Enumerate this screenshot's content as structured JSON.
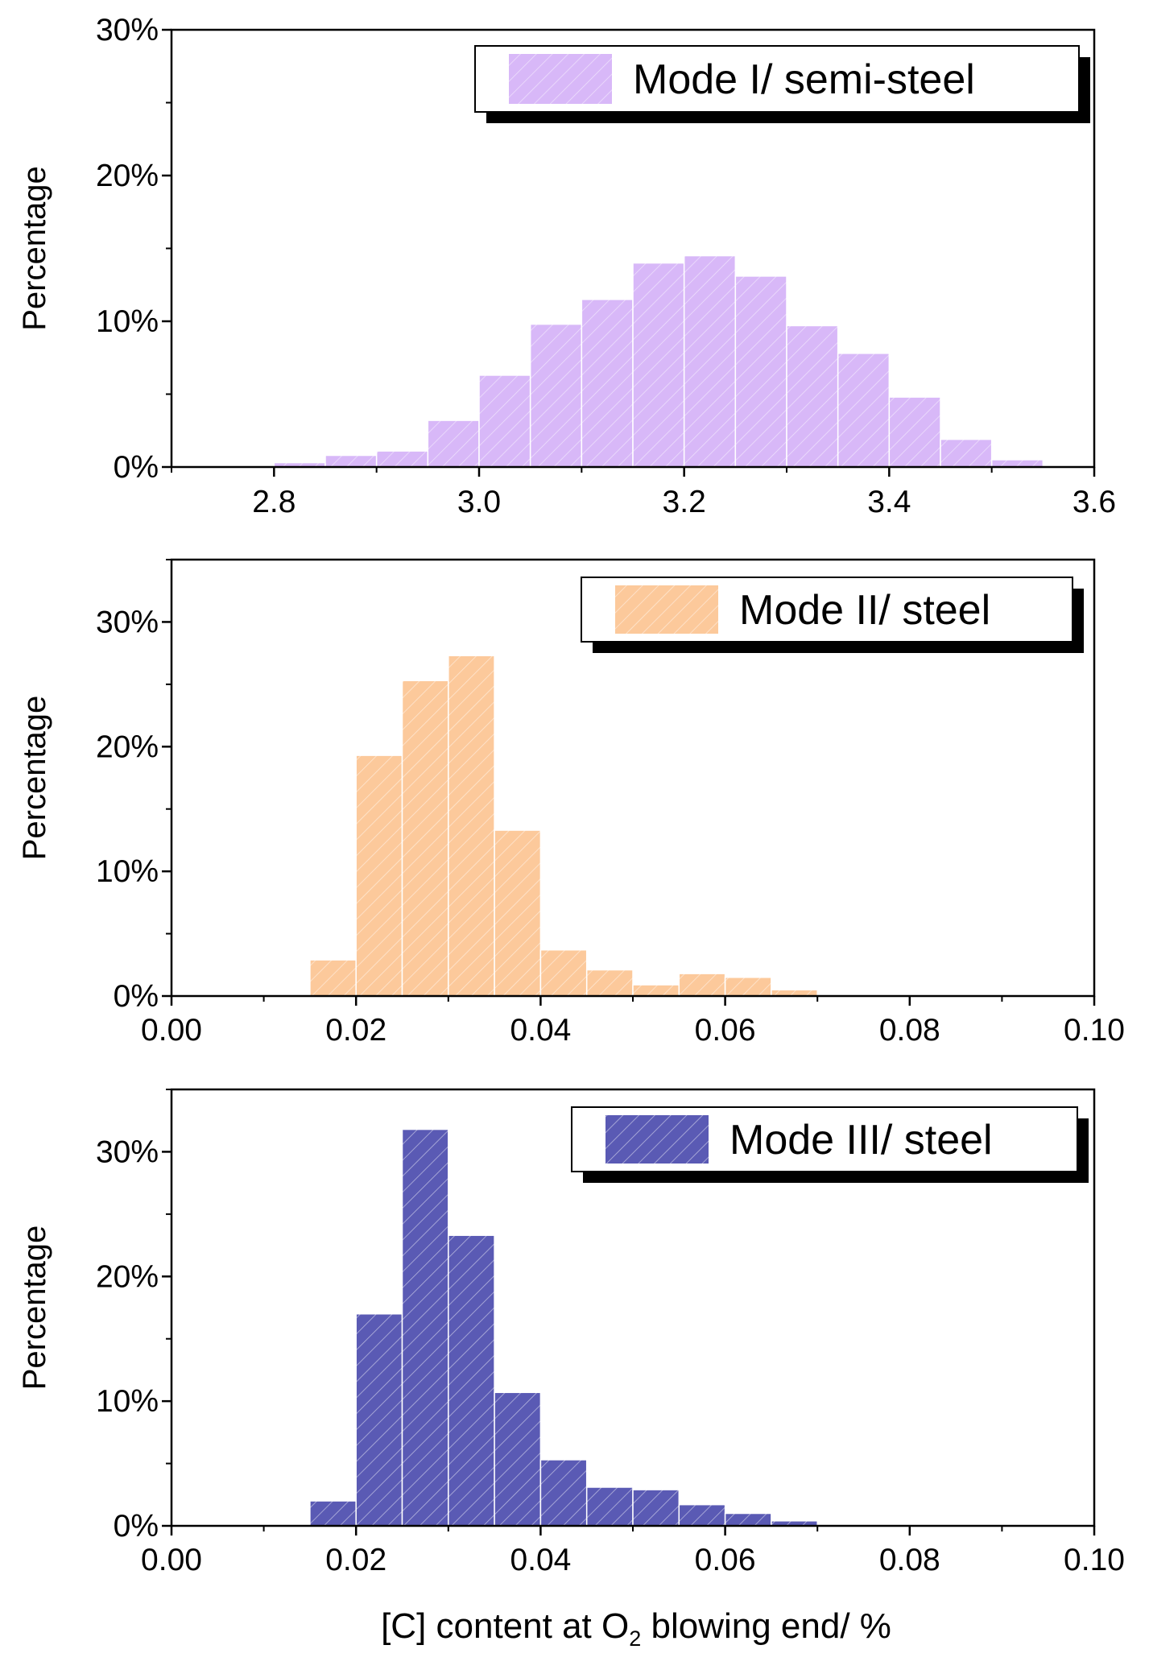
{
  "figure": {
    "xlabel_parts": [
      "[C] content at O",
      "2",
      " blowing end/ %"
    ]
  },
  "chart_data": [
    {
      "type": "bar",
      "title": "",
      "legend": "Mode I/ semi-steel",
      "legend_position": "top-right",
      "color": "#d8b8f8",
      "hatch_color": "#ffffff",
      "xlabel": "",
      "ylabel": "Percentage",
      "xlim": [
        2.7,
        3.6
      ],
      "ylim": [
        0,
        30
      ],
      "xticks": [
        2.8,
        3.0,
        3.2,
        3.4,
        3.6
      ],
      "xtick_labels": [
        "2.8",
        "3.0",
        "3.2",
        "3.4",
        "3.6"
      ],
      "yticks": [
        0,
        10,
        20,
        30
      ],
      "ytick_labels": [
        "0%",
        "10%",
        "20%",
        "30%"
      ],
      "bin_width": 0.05,
      "bin_starts": [
        2.8,
        2.85,
        2.9,
        2.95,
        3.0,
        3.05,
        3.1,
        3.15,
        3.2,
        3.25,
        3.3,
        3.35,
        3.4,
        3.45,
        3.5
      ],
      "values": [
        0.3,
        0.8,
        1.1,
        3.2,
        6.3,
        9.8,
        11.5,
        14.0,
        14.5,
        13.1,
        9.7,
        7.8,
        4.8,
        1.9,
        0.5
      ]
    },
    {
      "type": "bar",
      "title": "",
      "legend": "Mode II/ steel",
      "legend_position": "top-right",
      "color": "#fcc99b",
      "hatch_color": "#ffffff",
      "xlabel": "",
      "ylabel": "Percentage",
      "xlim": [
        0.0,
        0.1
      ],
      "ylim": [
        0,
        35
      ],
      "xticks": [
        0.0,
        0.02,
        0.04,
        0.06,
        0.08,
        0.1
      ],
      "xtick_labels": [
        "0.00",
        "0.02",
        "0.04",
        "0.06",
        "0.08",
        "0.10"
      ],
      "yticks": [
        0,
        10,
        20,
        30
      ],
      "ytick_labels": [
        "0%",
        "10%",
        "20%",
        "30%"
      ],
      "bin_width": 0.005,
      "bin_starts": [
        0.015,
        0.02,
        0.025,
        0.03,
        0.035,
        0.04,
        0.045,
        0.05,
        0.055,
        0.06,
        0.065
      ],
      "values": [
        2.9,
        19.3,
        25.3,
        27.3,
        13.3,
        3.7,
        2.1,
        0.9,
        1.8,
        1.5,
        0.5
      ]
    },
    {
      "type": "bar",
      "title": "",
      "legend": "Mode III/ steel",
      "legend_position": "top-right",
      "color": "#5a5ab4",
      "hatch_color": "#ffffff",
      "xlabel": "[C] content at O2 blowing end/ %",
      "ylabel": "Percentage",
      "xlim": [
        0.0,
        0.1
      ],
      "ylim": [
        0,
        35
      ],
      "xticks": [
        0.0,
        0.02,
        0.04,
        0.06,
        0.08,
        0.1
      ],
      "xtick_labels": [
        "0.00",
        "0.02",
        "0.04",
        "0.06",
        "0.08",
        "0.10"
      ],
      "yticks": [
        0,
        10,
        20,
        30
      ],
      "ytick_labels": [
        "0%",
        "10%",
        "20%",
        "30%"
      ],
      "bin_width": 0.005,
      "bin_starts": [
        0.015,
        0.02,
        0.025,
        0.03,
        0.035,
        0.04,
        0.045,
        0.05,
        0.055,
        0.06,
        0.065
      ],
      "values": [
        2.0,
        17.0,
        31.8,
        23.3,
        10.7,
        5.3,
        3.1,
        2.9,
        1.7,
        1.0,
        0.4
      ]
    }
  ]
}
